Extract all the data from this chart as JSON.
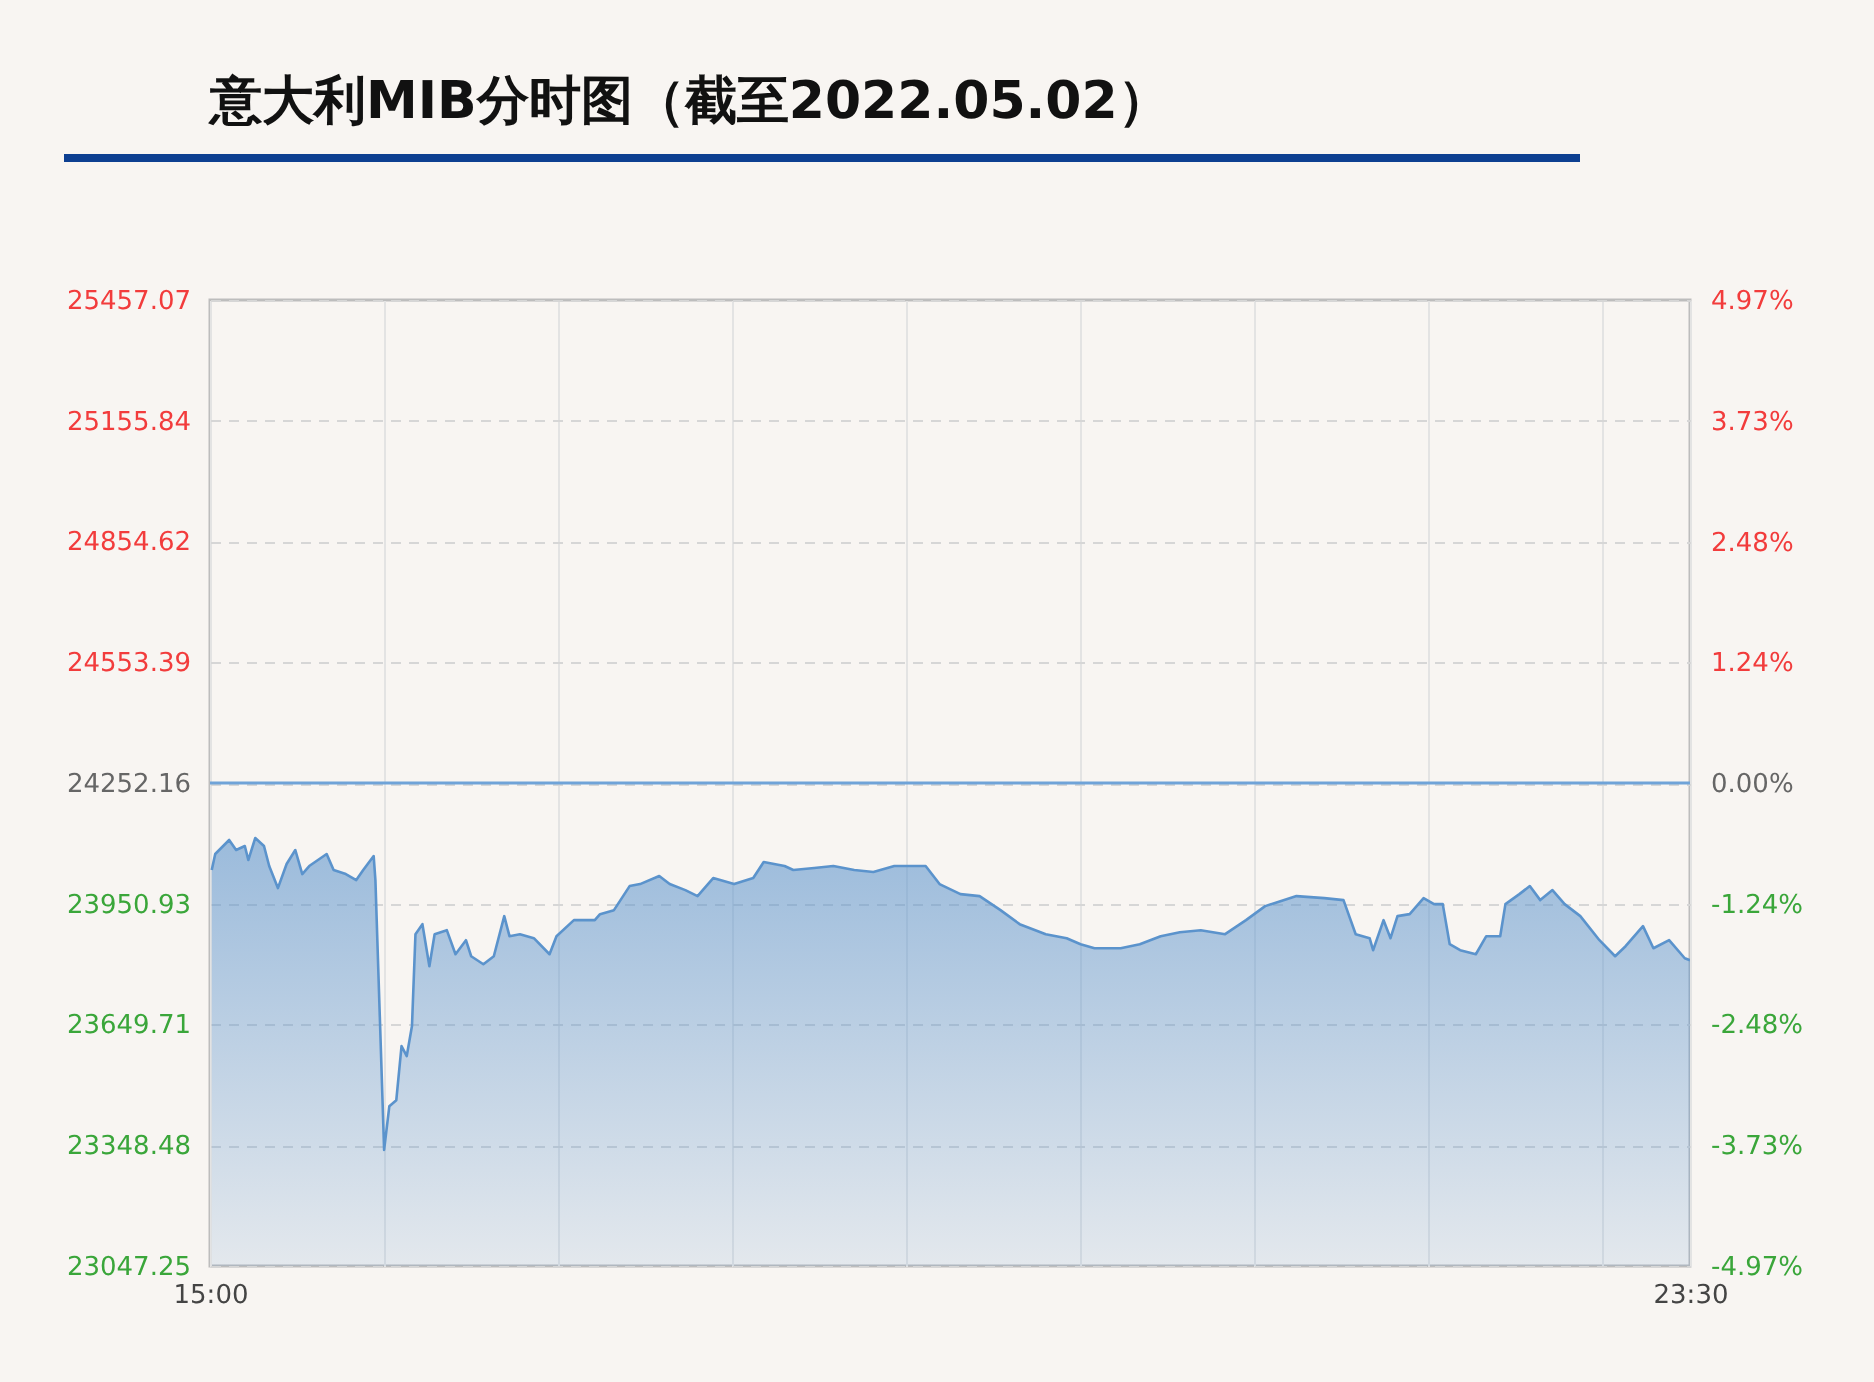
{
  "chart_data": {
    "type": "area",
    "title": "意大利MIB分时图（截至2022.05.02）",
    "x": [
      15.01,
      15.03,
      15.11,
      15.15,
      15.2,
      15.22,
      15.26,
      15.31,
      15.34,
      15.39,
      15.44,
      15.49,
      15.53,
      15.57,
      15.67,
      15.71,
      15.78,
      15.84,
      15.88,
      15.94,
      15.95,
      16.0,
      16.03,
      16.07,
      16.1,
      16.13,
      16.16,
      16.18,
      16.22,
      16.26,
      16.29,
      16.36,
      16.41,
      16.47,
      16.5,
      16.57,
      16.63,
      16.69,
      16.72,
      16.78,
      16.86,
      16.95,
      16.99,
      17.09,
      17.21,
      17.24,
      17.32,
      17.41,
      17.47,
      17.58,
      17.64,
      17.73,
      17.8,
      17.89,
      18.01,
      18.12,
      18.18,
      18.3,
      18.35,
      18.47,
      18.58,
      18.7,
      18.81,
      18.93,
      19.11,
      19.19,
      19.31,
      19.42,
      19.54,
      19.65,
      19.8,
      19.92,
      20.0,
      20.08,
      20.23,
      20.34,
      20.46,
      20.57,
      20.69,
      20.83,
      20.95,
      21.06,
      21.24,
      21.4,
      21.51,
      21.58,
      21.66,
      21.68,
      21.74,
      21.78,
      21.82,
      21.89,
      21.97,
      22.03,
      22.08,
      22.12,
      22.18,
      22.27,
      22.33,
      22.41,
      22.44,
      22.52,
      22.58,
      22.64,
      22.71,
      22.78,
      22.87,
      22.98,
      23.07,
      23.13,
      23.23,
      23.29,
      23.38,
      23.47,
      23.5
    ],
    "series": [
      {
        "color": "#5b93cc",
        "values": [
          24035,
          24075,
          24110,
          24085,
          24095,
          24060,
          24115,
          24095,
          24045,
          23990,
          24050,
          24085,
          24025,
          24045,
          24075,
          24035,
          24025,
          24010,
          24035,
          24070,
          24010,
          23337,
          23446,
          23461,
          23596,
          23571,
          23646,
          23875,
          23900,
          23795,
          23875,
          23885,
          23825,
          23860,
          23820,
          23800,
          23820,
          23920,
          23870,
          23875,
          23865,
          23825,
          23870,
          23910,
          23910,
          23925,
          23935,
          23995,
          24000,
          24020,
          24000,
          23985,
          23970,
          24015,
          24000,
          24015,
          24055,
          24045,
          24035,
          24040,
          24045,
          24035,
          24030,
          24045,
          24045,
          24000,
          23975,
          23970,
          23935,
          23900,
          23875,
          23865,
          23850,
          23840,
          23840,
          23850,
          23870,
          23880,
          23885,
          23875,
          23910,
          23945,
          23970,
          23965,
          23960,
          23875,
          23865,
          23835,
          23910,
          23865,
          23920,
          23925,
          23965,
          23950,
          23950,
          23850,
          23835,
          23825,
          23870,
          23870,
          23950,
          23975,
          23995,
          23960,
          23985,
          23950,
          23920,
          23860,
          23820,
          23845,
          23895,
          23840,
          23860,
          23815,
          23810
        ]
      }
    ],
    "xlim": [
      15,
      23.5
    ],
    "xticks": [
      {
        "value": 15,
        "label": "15:00"
      },
      {
        "value": 16,
        "label": null
      },
      {
        "value": 17,
        "label": null
      },
      {
        "value": 18,
        "label": null
      },
      {
        "value": 19,
        "label": null
      },
      {
        "value": 20,
        "label": null
      },
      {
        "value": 21,
        "label": null
      },
      {
        "value": 22,
        "label": null
      },
      {
        "value": 23,
        "label": null
      },
      {
        "value": 23.5,
        "label": "23:30"
      }
    ],
    "ylim": [
      23047.25,
      25457.07
    ],
    "yticks": [
      23047.25,
      23348.48,
      23649.71,
      23950.93,
      24252.16,
      24553.39,
      24854.62,
      25155.84,
      25457.07
    ],
    "y2lim": [
      -4.97,
      4.97
    ],
    "y2ticks": [
      {
        "value": -4.97,
        "label": "-4.97%"
      },
      {
        "value": -3.73,
        "label": "-3.73%"
      },
      {
        "value": -2.48,
        "label": "-2.48%"
      },
      {
        "value": -1.24,
        "label": "-1.24%"
      },
      {
        "value": 0,
        "label": "0.00%"
      },
      {
        "value": 1.24,
        "label": "1.24%"
      },
      {
        "value": 2.48,
        "label": "2.48%"
      },
      {
        "value": 3.73,
        "label": "3.73%"
      },
      {
        "value": 4.97,
        "label": "4.97%"
      }
    ],
    "ref_lines": [
      {
        "axis": "y2",
        "value": 0,
        "color": "#6fa3d8"
      }
    ],
    "grid": true
  }
}
